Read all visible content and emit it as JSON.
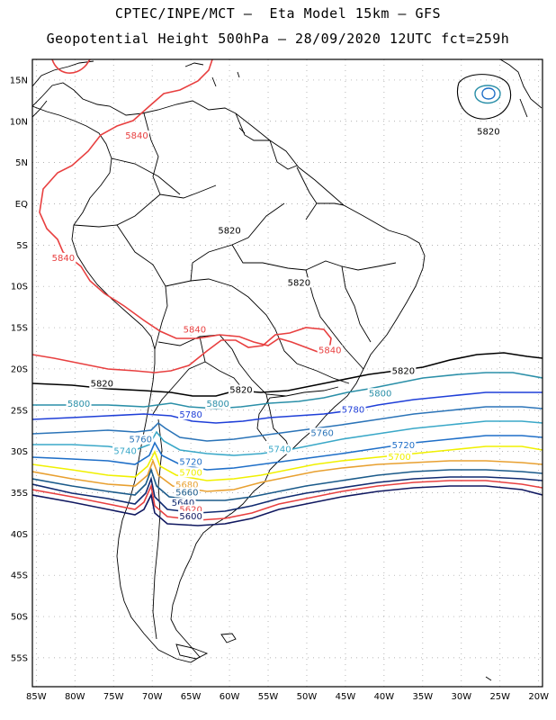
{
  "header": {
    "title_line1": "CPTEC/INPE/MCT –  Eta Model 15km – GFS",
    "title_line2": "Geopotential Height 500hPa – 28/09/2020 12UTC fct=259h"
  },
  "axes": {
    "lon_labels": [
      "85W",
      "80W",
      "75W",
      "70W",
      "65W",
      "60W",
      "55W",
      "50W",
      "45W",
      "40W",
      "35W",
      "30W",
      "25W",
      "20W"
    ],
    "lat_labels": [
      "15N",
      "10N",
      "5N",
      "EQ",
      "5S",
      "10S",
      "15S",
      "20S",
      "25S",
      "30S",
      "35S",
      "40S",
      "45S",
      "50S",
      "55S"
    ],
    "lon_range": [
      -85.5,
      -19.5
    ],
    "lat_range": [
      17.5,
      -58.5
    ],
    "grid": "dotted"
  },
  "colors": {
    "c5840": "#e84040",
    "c5820": "#000000",
    "c5800": "#2a8fa8",
    "c5780": "#1f3fd8",
    "c5760": "#2b74b8",
    "c5740": "#3aa8c8",
    "c5720": "#1f6fc8",
    "c5700": "#f0f000",
    "c5680": "#e8a030",
    "c5660": "#1a5a8a",
    "c5640": "#102a70",
    "c5620": "#e84040",
    "c5600": "#101860",
    "land": "#000000"
  },
  "contours": [
    {
      "value": "5840",
      "labels": [
        {
          "text": "5840",
          "lon": -72,
          "lat": 8
        },
        {
          "text": "5840",
          "lon": -81.5,
          "lat": -6.8
        },
        {
          "text": "5840",
          "lon": -64.5,
          "lat": -15.5
        },
        {
          "text": "5840",
          "lon": -47,
          "lat": -18
        }
      ]
    },
    {
      "value": "5820",
      "labels": [
        {
          "text": "5820",
          "lon": -60,
          "lat": -3.5
        },
        {
          "text": "5820",
          "lon": -51,
          "lat": -9.8
        },
        {
          "text": "5820",
          "lon": -26.5,
          "lat": 8.5
        },
        {
          "text": "5820",
          "lon": -76.5,
          "lat": -22
        },
        {
          "text": "5820",
          "lon": -58.5,
          "lat": -22.8
        },
        {
          "text": "5820",
          "lon": -37.5,
          "lat": -20.5
        }
      ]
    },
    {
      "value": "5800",
      "labels": [
        {
          "text": "5800",
          "lon": -79.5,
          "lat": -24.5
        },
        {
          "text": "5800",
          "lon": -61.5,
          "lat": -24.5
        },
        {
          "text": "5800",
          "lon": -40.5,
          "lat": -23.2
        }
      ]
    },
    {
      "value": "5780",
      "labels": [
        {
          "text": "5780",
          "lon": -65,
          "lat": -25.8
        },
        {
          "text": "5780",
          "lon": -44,
          "lat": -25.2
        }
      ]
    },
    {
      "value": "5760",
      "labels": [
        {
          "text": "5760",
          "lon": -71.5,
          "lat": -28.8
        },
        {
          "text": "5760",
          "lon": -48,
          "lat": -28
        }
      ]
    },
    {
      "value": "5740",
      "labels": [
        {
          "text": "5740",
          "lon": -73.5,
          "lat": -30.2
        },
        {
          "text": "5740",
          "lon": -53.5,
          "lat": -30
        }
      ]
    },
    {
      "value": "5720",
      "labels": [
        {
          "text": "5720",
          "lon": -65,
          "lat": -31.5
        },
        {
          "text": "5720",
          "lon": -37.5,
          "lat": -29.5
        }
      ]
    },
    {
      "value": "5700",
      "labels": [
        {
          "text": "5700",
          "lon": -65,
          "lat": -32.8
        },
        {
          "text": "5700",
          "lon": -38,
          "lat": -30.9
        }
      ]
    },
    {
      "value": "5680",
      "labels": [
        {
          "text": "5680",
          "lon": -65.5,
          "lat": -34.3
        }
      ]
    },
    {
      "value": "5660",
      "labels": [
        {
          "text": "5660",
          "lon": -65.5,
          "lat": -35.2
        }
      ]
    },
    {
      "value": "5640",
      "labels": [
        {
          "text": "5640",
          "lon": -66,
          "lat": -36.5
        }
      ]
    },
    {
      "value": "5620",
      "labels": [
        {
          "text": "5620",
          "lon": -65,
          "lat": -37.3
        }
      ]
    },
    {
      "value": "5600",
      "labels": [
        {
          "text": "5600",
          "lon": -65,
          "lat": -38.1
        }
      ]
    }
  ]
}
